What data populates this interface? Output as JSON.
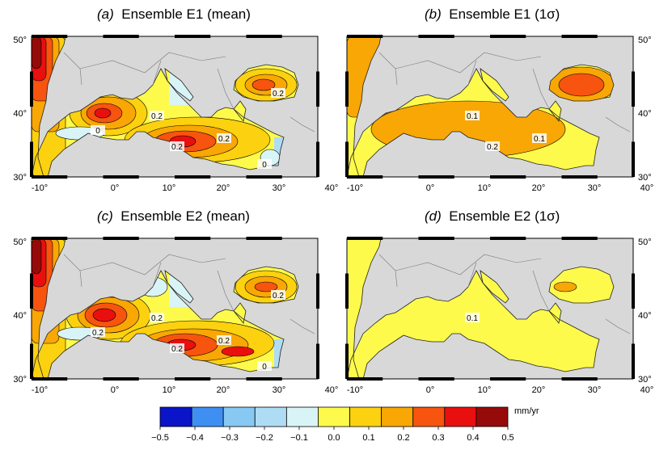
{
  "panels": [
    {
      "letter": "(a)",
      "title": "Ensemble E1 (mean)",
      "field": "mean1",
      "labels": [
        "0.2",
        "0.2",
        "0.2",
        "0.2",
        "0",
        "0"
      ]
    },
    {
      "letter": "(b)",
      "title": "Ensemble E1 (1σ)",
      "field": "sig1",
      "labels": [
        "0.1",
        "0.1",
        "0.2"
      ]
    },
    {
      "letter": "(c)",
      "title": "Ensemble E2 (mean)",
      "field": "mean2",
      "labels": [
        "0.2",
        "0.2",
        "0.2",
        "0.2",
        "0.2",
        "0"
      ]
    },
    {
      "letter": "(d)",
      "title": "Ensemble E2 (1σ)",
      "field": "sig2",
      "labels": [
        "0.1"
      ]
    }
  ],
  "axes": {
    "x_ticks": [
      "-10°",
      "0°",
      "10°",
      "20°",
      "30°",
      "40°"
    ],
    "y_ticks_left": [
      "30°",
      "40°",
      "50°"
    ],
    "y_ticks_right": [
      "30°",
      "40°",
      "50°"
    ],
    "lon_range": [
      -11.5,
      44.5
    ],
    "lat_range": [
      30,
      50
    ]
  },
  "colorbar": {
    "unit": "mm/yr",
    "ticks": [
      "−0.5",
      "−0.4",
      "−0.3",
      "−0.2",
      "−0.1",
      "0.0",
      "0.1",
      "0.2",
      "0.3",
      "0.4",
      "0.5"
    ],
    "colors": [
      "#0a14c8",
      "#3f8ef2",
      "#87c9f3",
      "#aedcf5",
      "#d9f4f7",
      "#fdfa4b",
      "#fcd10f",
      "#f9a705",
      "#f6540f",
      "#e90f0f",
      "#960a0a"
    ]
  },
  "land_color": "#d8d8d8"
}
